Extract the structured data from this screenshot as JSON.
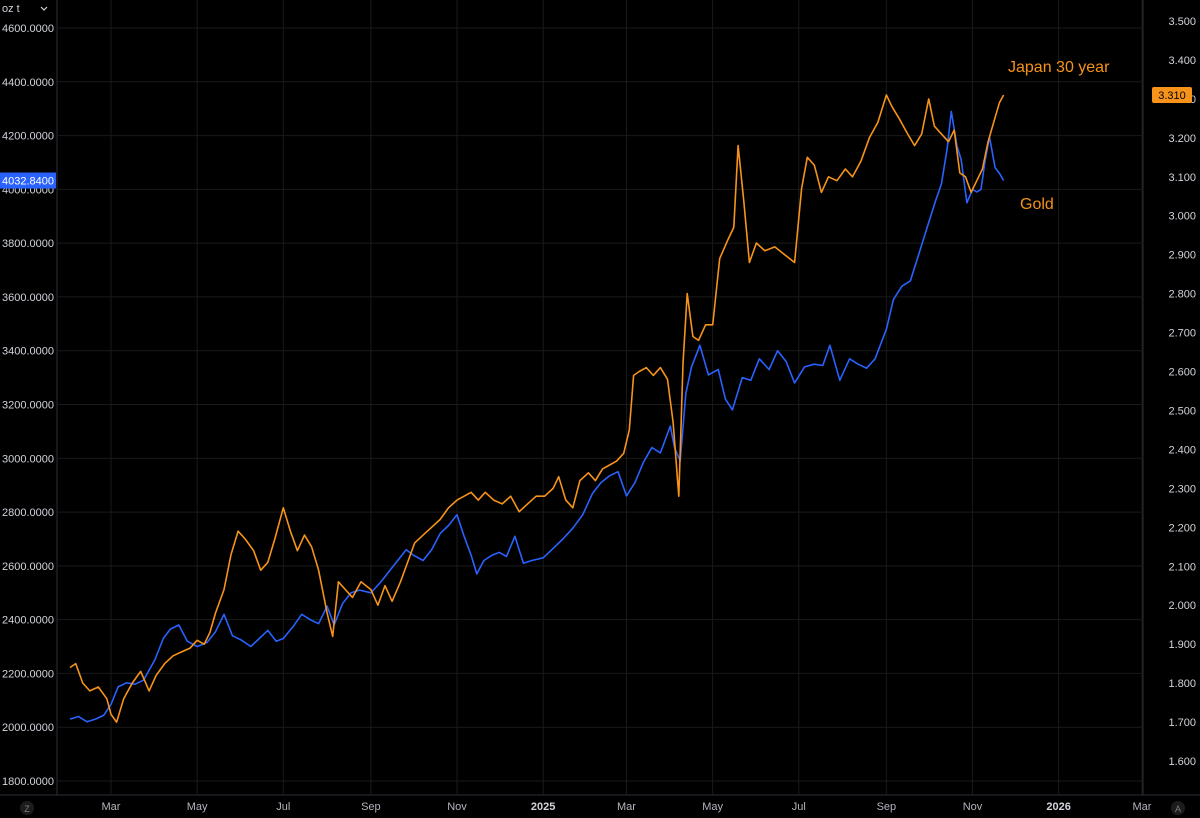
{
  "header": {
    "unit_label": "oz t",
    "menu_chevron": "chevron-down-icon"
  },
  "corner": {
    "left_button": "Z",
    "right_button": "A"
  },
  "colors": {
    "background": "#000000",
    "grid": "#1a1a1a",
    "gold_line": "#2962ff",
    "japan_line": "#f7931a"
  },
  "chart_data": {
    "type": "line",
    "x_axis": {
      "type": "date",
      "range": [
        "2024-02-01",
        "2026-03-01"
      ],
      "ticks": [
        {
          "date": "2024-03-01",
          "label": "Mar"
        },
        {
          "date": "2024-05-01",
          "label": "May"
        },
        {
          "date": "2024-07-01",
          "label": "Jul"
        },
        {
          "date": "2024-09-01",
          "label": "Sep"
        },
        {
          "date": "2024-11-01",
          "label": "Nov"
        },
        {
          "date": "2025-01-01",
          "label": "2025",
          "bold": true
        },
        {
          "date": "2025-03-01",
          "label": "Mar"
        },
        {
          "date": "2025-05-01",
          "label": "May"
        },
        {
          "date": "2025-07-01",
          "label": "Jul"
        },
        {
          "date": "2025-09-01",
          "label": "Sep"
        },
        {
          "date": "2025-11-01",
          "label": "Nov"
        },
        {
          "date": "2026-01-01",
          "label": "2026",
          "bold": true
        },
        {
          "date": "2026-03-01",
          "label": "Mar"
        }
      ]
    },
    "left_axis": {
      "range": [
        1800,
        4600
      ],
      "ticks": [
        "1800.0000",
        "2000.0000",
        "2200.0000",
        "2400.0000",
        "2600.0000",
        "2800.0000",
        "3000.0000",
        "3200.0000",
        "3400.0000",
        "3600.0000",
        "3800.0000",
        "4000.0000",
        "4200.0000",
        "4400.0000",
        "4600.0000"
      ]
    },
    "right_axis": {
      "range": [
        1.6,
        3.5
      ],
      "ticks": [
        "1.600",
        "1.700",
        "1.800",
        "1.900",
        "2.000",
        "2.100",
        "2.200",
        "2.300",
        "2.400",
        "2.500",
        "2.600",
        "2.700",
        "2.800",
        "2.900",
        "3.000",
        "3.100",
        "3.200",
        "3.300",
        "3.400",
        "3.500"
      ]
    },
    "grid": true,
    "last_values": {
      "gold": "4032.8400",
      "japan": "3.310"
    },
    "series": [
      {
        "key": "gold",
        "name": "Gold",
        "axis": "left",
        "color": "#2962ff",
        "points": [
          [
            "2024-02-01",
            2030
          ],
          [
            "2024-02-07",
            2040
          ],
          [
            "2024-02-13",
            2020
          ],
          [
            "2024-02-19",
            2030
          ],
          [
            "2024-02-25",
            2045
          ],
          [
            "2024-03-01",
            2085
          ],
          [
            "2024-03-06",
            2150
          ],
          [
            "2024-03-12",
            2165
          ],
          [
            "2024-03-18",
            2160
          ],
          [
            "2024-03-24",
            2175
          ],
          [
            "2024-04-01",
            2250
          ],
          [
            "2024-04-07",
            2330
          ],
          [
            "2024-04-12",
            2365
          ],
          [
            "2024-04-18",
            2380
          ],
          [
            "2024-04-24",
            2320
          ],
          [
            "2024-05-01",
            2300
          ],
          [
            "2024-05-08",
            2315
          ],
          [
            "2024-05-14",
            2355
          ],
          [
            "2024-05-20",
            2420
          ],
          [
            "2024-05-26",
            2340
          ],
          [
            "2024-06-01",
            2325
          ],
          [
            "2024-06-08",
            2300
          ],
          [
            "2024-06-14",
            2330
          ],
          [
            "2024-06-20",
            2360
          ],
          [
            "2024-06-26",
            2320
          ],
          [
            "2024-07-01",
            2330
          ],
          [
            "2024-07-08",
            2375
          ],
          [
            "2024-07-14",
            2420
          ],
          [
            "2024-07-20",
            2400
          ],
          [
            "2024-07-26",
            2385
          ],
          [
            "2024-08-01",
            2450
          ],
          [
            "2024-08-06",
            2380
          ],
          [
            "2024-08-12",
            2460
          ],
          [
            "2024-08-18",
            2500
          ],
          [
            "2024-08-24",
            2510
          ],
          [
            "2024-09-01",
            2500
          ],
          [
            "2024-09-08",
            2540
          ],
          [
            "2024-09-14",
            2580
          ],
          [
            "2024-09-20",
            2620
          ],
          [
            "2024-09-26",
            2660
          ],
          [
            "2024-10-01",
            2640
          ],
          [
            "2024-10-08",
            2620
          ],
          [
            "2024-10-14",
            2660
          ],
          [
            "2024-10-20",
            2720
          ],
          [
            "2024-10-26",
            2750
          ],
          [
            "2024-11-01",
            2790
          ],
          [
            "2024-11-06",
            2710
          ],
          [
            "2024-11-11",
            2640
          ],
          [
            "2024-11-15",
            2570
          ],
          [
            "2024-11-20",
            2620
          ],
          [
            "2024-11-26",
            2640
          ],
          [
            "2024-12-01",
            2650
          ],
          [
            "2024-12-06",
            2635
          ],
          [
            "2024-12-12",
            2710
          ],
          [
            "2024-12-18",
            2610
          ],
          [
            "2024-12-24",
            2620
          ],
          [
            "2025-01-01",
            2630
          ],
          [
            "2025-01-08",
            2665
          ],
          [
            "2025-01-15",
            2700
          ],
          [
            "2025-01-22",
            2740
          ],
          [
            "2025-01-29",
            2790
          ],
          [
            "2025-02-05",
            2870
          ],
          [
            "2025-02-11",
            2910
          ],
          [
            "2025-02-17",
            2935
          ],
          [
            "2025-02-23",
            2950
          ],
          [
            "2025-03-01",
            2860
          ],
          [
            "2025-03-07",
            2910
          ],
          [
            "2025-03-13",
            2985
          ],
          [
            "2025-03-19",
            3040
          ],
          [
            "2025-03-25",
            3020
          ],
          [
            "2025-04-01",
            3120
          ],
          [
            "2025-04-04",
            3040
          ],
          [
            "2025-04-08",
            2990
          ],
          [
            "2025-04-12",
            3240
          ],
          [
            "2025-04-16",
            3340
          ],
          [
            "2025-04-22",
            3420
          ],
          [
            "2025-04-28",
            3310
          ],
          [
            "2025-05-05",
            3330
          ],
          [
            "2025-05-10",
            3220
          ],
          [
            "2025-05-15",
            3180
          ],
          [
            "2025-05-22",
            3300
          ],
          [
            "2025-05-28",
            3290
          ],
          [
            "2025-06-03",
            3370
          ],
          [
            "2025-06-10",
            3330
          ],
          [
            "2025-06-16",
            3400
          ],
          [
            "2025-06-22",
            3360
          ],
          [
            "2025-06-28",
            3280
          ],
          [
            "2025-07-05",
            3340
          ],
          [
            "2025-07-12",
            3350
          ],
          [
            "2025-07-18",
            3345
          ],
          [
            "2025-07-23",
            3420
          ],
          [
            "2025-07-30",
            3290
          ],
          [
            "2025-08-06",
            3370
          ],
          [
            "2025-08-12",
            3350
          ],
          [
            "2025-08-18",
            3335
          ],
          [
            "2025-08-24",
            3370
          ],
          [
            "2025-09-01",
            3480
          ],
          [
            "2025-09-06",
            3590
          ],
          [
            "2025-09-12",
            3640
          ],
          [
            "2025-09-18",
            3660
          ],
          [
            "2025-09-24",
            3760
          ],
          [
            "2025-09-30",
            3860
          ],
          [
            "2025-10-06",
            3960
          ],
          [
            "2025-10-10",
            4020
          ],
          [
            "2025-10-14",
            4150
          ],
          [
            "2025-10-17",
            4290
          ],
          [
            "2025-10-21",
            4160
          ],
          [
            "2025-10-24",
            4110
          ],
          [
            "2025-10-28",
            3950
          ],
          [
            "2025-11-01",
            4000
          ],
          [
            "2025-11-04",
            3990
          ],
          [
            "2025-11-07",
            4000
          ],
          [
            "2025-11-10",
            4110
          ],
          [
            "2025-11-13",
            4195
          ],
          [
            "2025-11-17",
            4080
          ],
          [
            "2025-11-20",
            4060
          ],
          [
            "2025-11-23",
            4032.84
          ]
        ]
      },
      {
        "key": "japan",
        "name": "Japan 30 year",
        "axis": "right",
        "color": "#f7931a",
        "points": [
          [
            "2024-02-01",
            1.84
          ],
          [
            "2024-02-05",
            1.85
          ],
          [
            "2024-02-10",
            1.8
          ],
          [
            "2024-02-15",
            1.78
          ],
          [
            "2024-02-21",
            1.79
          ],
          [
            "2024-02-27",
            1.76
          ],
          [
            "2024-03-01",
            1.72
          ],
          [
            "2024-03-05",
            1.7
          ],
          [
            "2024-03-10",
            1.76
          ],
          [
            "2024-03-16",
            1.8
          ],
          [
            "2024-03-22",
            1.83
          ],
          [
            "2024-03-28",
            1.78
          ],
          [
            "2024-04-02",
            1.82
          ],
          [
            "2024-04-08",
            1.85
          ],
          [
            "2024-04-14",
            1.87
          ],
          [
            "2024-04-20",
            1.88
          ],
          [
            "2024-04-26",
            1.89
          ],
          [
            "2024-05-01",
            1.91
          ],
          [
            "2024-05-06",
            1.9
          ],
          [
            "2024-05-10",
            1.93
          ],
          [
            "2024-05-14",
            1.98
          ],
          [
            "2024-05-20",
            2.04
          ],
          [
            "2024-05-25",
            2.13
          ],
          [
            "2024-05-30",
            2.19
          ],
          [
            "2024-06-04",
            2.17
          ],
          [
            "2024-06-10",
            2.14
          ],
          [
            "2024-06-15",
            2.09
          ],
          [
            "2024-06-20",
            2.11
          ],
          [
            "2024-06-25",
            2.17
          ],
          [
            "2024-07-01",
            2.25
          ],
          [
            "2024-07-06",
            2.19
          ],
          [
            "2024-07-11",
            2.14
          ],
          [
            "2024-07-16",
            2.18
          ],
          [
            "2024-07-21",
            2.15
          ],
          [
            "2024-07-26",
            2.09
          ],
          [
            "2024-08-01",
            1.98
          ],
          [
            "2024-08-05",
            1.92
          ],
          [
            "2024-08-09",
            2.06
          ],
          [
            "2024-08-14",
            2.04
          ],
          [
            "2024-08-19",
            2.02
          ],
          [
            "2024-08-25",
            2.06
          ],
          [
            "2024-09-01",
            2.04
          ],
          [
            "2024-09-06",
            2.0
          ],
          [
            "2024-09-11",
            2.05
          ],
          [
            "2024-09-16",
            2.01
          ],
          [
            "2024-09-22",
            2.06
          ],
          [
            "2024-09-27",
            2.11
          ],
          [
            "2024-10-02",
            2.16
          ],
          [
            "2024-10-08",
            2.18
          ],
          [
            "2024-10-14",
            2.2
          ],
          [
            "2024-10-20",
            2.22
          ],
          [
            "2024-10-26",
            2.25
          ],
          [
            "2024-11-01",
            2.27
          ],
          [
            "2024-11-06",
            2.28
          ],
          [
            "2024-11-11",
            2.29
          ],
          [
            "2024-11-16",
            2.27
          ],
          [
            "2024-11-21",
            2.29
          ],
          [
            "2024-11-27",
            2.27
          ],
          [
            "2024-12-03",
            2.26
          ],
          [
            "2024-12-09",
            2.28
          ],
          [
            "2024-12-15",
            2.24
          ],
          [
            "2024-12-21",
            2.26
          ],
          [
            "2024-12-27",
            2.28
          ],
          [
            "2025-01-02",
            2.28
          ],
          [
            "2025-01-08",
            2.3
          ],
          [
            "2025-01-12",
            2.33
          ],
          [
            "2025-01-17",
            2.27
          ],
          [
            "2025-01-22",
            2.25
          ],
          [
            "2025-01-27",
            2.32
          ],
          [
            "2025-02-02",
            2.34
          ],
          [
            "2025-02-07",
            2.32
          ],
          [
            "2025-02-12",
            2.35
          ],
          [
            "2025-02-17",
            2.36
          ],
          [
            "2025-02-22",
            2.37
          ],
          [
            "2025-02-27",
            2.39
          ],
          [
            "2025-03-03",
            2.45
          ],
          [
            "2025-03-06",
            2.59
          ],
          [
            "2025-03-10",
            2.6
          ],
          [
            "2025-03-15",
            2.61
          ],
          [
            "2025-03-20",
            2.59
          ],
          [
            "2025-03-25",
            2.61
          ],
          [
            "2025-03-30",
            2.58
          ],
          [
            "2025-04-03",
            2.47
          ],
          [
            "2025-04-07",
            2.28
          ],
          [
            "2025-04-10",
            2.62
          ],
          [
            "2025-04-13",
            2.8
          ],
          [
            "2025-04-17",
            2.69
          ],
          [
            "2025-04-21",
            2.68
          ],
          [
            "2025-04-26",
            2.72
          ],
          [
            "2025-05-01",
            2.72
          ],
          [
            "2025-05-06",
            2.89
          ],
          [
            "2025-05-12",
            2.94
          ],
          [
            "2025-05-16",
            2.97
          ],
          [
            "2025-05-19",
            3.18
          ],
          [
            "2025-05-23",
            3.04
          ],
          [
            "2025-05-27",
            2.88
          ],
          [
            "2025-06-01",
            2.93
          ],
          [
            "2025-06-07",
            2.91
          ],
          [
            "2025-06-14",
            2.92
          ],
          [
            "2025-06-21",
            2.9
          ],
          [
            "2025-06-28",
            2.88
          ],
          [
            "2025-07-03",
            3.07
          ],
          [
            "2025-07-07",
            3.15
          ],
          [
            "2025-07-12",
            3.13
          ],
          [
            "2025-07-17",
            3.06
          ],
          [
            "2025-07-22",
            3.1
          ],
          [
            "2025-07-28",
            3.09
          ],
          [
            "2025-08-03",
            3.12
          ],
          [
            "2025-08-08",
            3.1
          ],
          [
            "2025-08-14",
            3.14
          ],
          [
            "2025-08-20",
            3.2
          ],
          [
            "2025-08-26",
            3.24
          ],
          [
            "2025-09-01",
            3.31
          ],
          [
            "2025-09-05",
            3.28
          ],
          [
            "2025-09-10",
            3.25
          ],
          [
            "2025-09-16",
            3.21
          ],
          [
            "2025-09-21",
            3.18
          ],
          [
            "2025-09-26",
            3.21
          ],
          [
            "2025-10-01",
            3.3
          ],
          [
            "2025-10-05",
            3.23
          ],
          [
            "2025-10-10",
            3.21
          ],
          [
            "2025-10-15",
            3.19
          ],
          [
            "2025-10-19",
            3.22
          ],
          [
            "2025-10-23",
            3.11
          ],
          [
            "2025-10-27",
            3.1
          ],
          [
            "2025-10-31",
            3.06
          ],
          [
            "2025-11-04",
            3.09
          ],
          [
            "2025-11-08",
            3.12
          ],
          [
            "2025-11-12",
            3.19
          ],
          [
            "2025-11-16",
            3.24
          ],
          [
            "2025-11-20",
            3.29
          ],
          [
            "2025-11-23",
            3.31
          ]
        ]
      }
    ]
  }
}
